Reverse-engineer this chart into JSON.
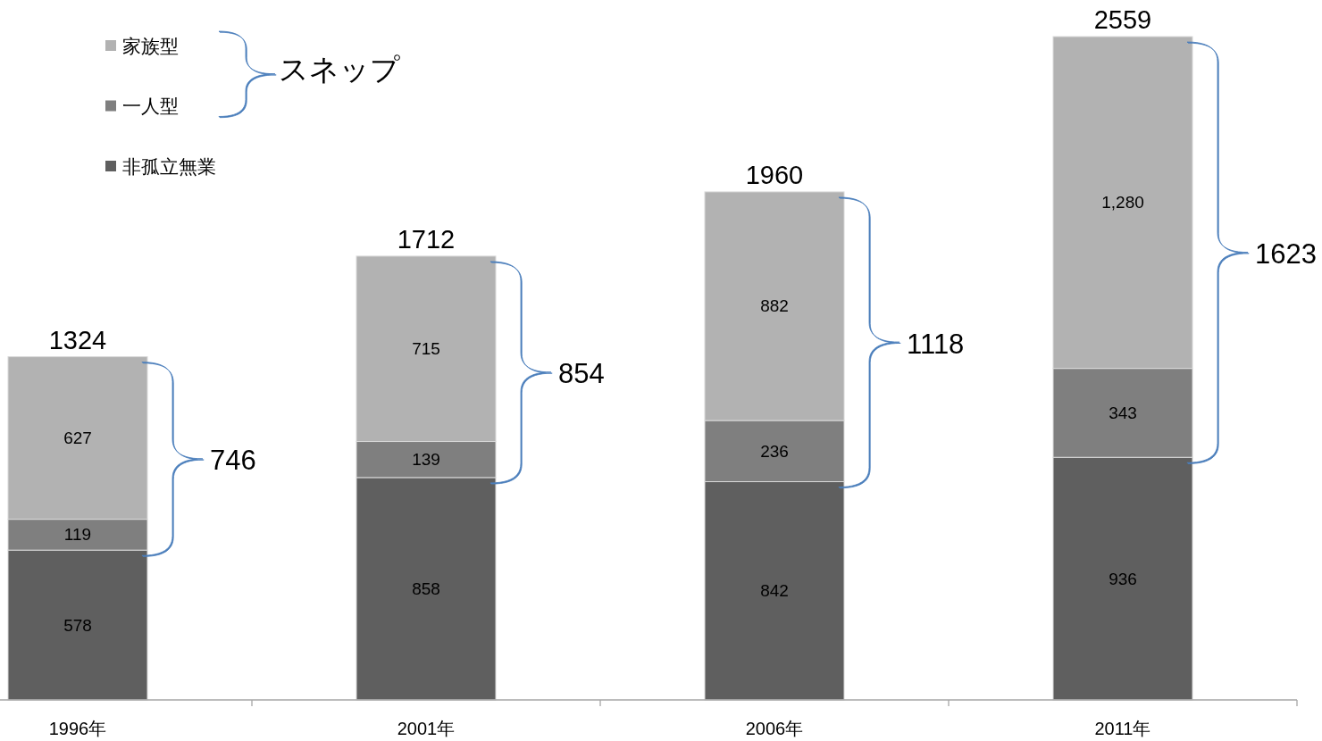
{
  "chart_data": {
    "type": "bar",
    "stacked": true,
    "categories": [
      "1996年",
      "2001年",
      "2006年",
      "2011年"
    ],
    "series": [
      {
        "name": "非孤立無業",
        "color": "#5f5f5f",
        "values": [
          578,
          858,
          842,
          936
        ],
        "value_labels": [
          "578",
          "858",
          "842",
          "936"
        ]
      },
      {
        "name": "一人型",
        "color": "#7f7f7f",
        "values": [
          119,
          139,
          236,
          343
        ],
        "value_labels": [
          "119",
          "139",
          "236",
          "343"
        ]
      },
      {
        "name": "家族型",
        "color": "#b2b2b2",
        "values": [
          627,
          715,
          882,
          1280
        ],
        "value_labels": [
          "627",
          "715",
          "882",
          "1,280"
        ]
      }
    ],
    "totals": [
      "1324",
      "1712",
      "1960",
      "2559"
    ],
    "legend": "top left",
    "annotations": [
      "746",
      "854",
      "1118",
      "1623",
      "スネップ"
    ]
  }
}
